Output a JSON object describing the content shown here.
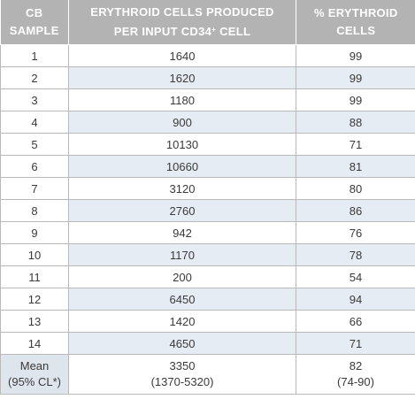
{
  "headers": {
    "col1_line1": "CB",
    "col1_line2": "SAMPLE",
    "col2_line1": "ERYTHROID CELLS PRODUCED",
    "col2_line2_pre": "PER INPUT CD34",
    "col2_sup": "+",
    "col2_line2_post": " CELL",
    "col3_line1": "% ERYTHROID",
    "col3_line2": "CELLS"
  },
  "rows": [
    {
      "sample": "1",
      "produced": "1640",
      "percent": "99"
    },
    {
      "sample": "2",
      "produced": "1620",
      "percent": "99"
    },
    {
      "sample": "3",
      "produced": "1180",
      "percent": "99"
    },
    {
      "sample": "4",
      "produced": "900",
      "percent": "88"
    },
    {
      "sample": "5",
      "produced": "10130",
      "percent": "71"
    },
    {
      "sample": "6",
      "produced": "10660",
      "percent": "81"
    },
    {
      "sample": "7",
      "produced": "3120",
      "percent": "80"
    },
    {
      "sample": "8",
      "produced": "2760",
      "percent": "86"
    },
    {
      "sample": "9",
      "produced": "942",
      "percent": "76"
    },
    {
      "sample": "10",
      "produced": "1170",
      "percent": "78"
    },
    {
      "sample": "11",
      "produced": "200",
      "percent": "54"
    },
    {
      "sample": "12",
      "produced": "6450",
      "percent": "94"
    },
    {
      "sample": "13",
      "produced": "1420",
      "percent": "66"
    },
    {
      "sample": "14",
      "produced": "4650",
      "percent": "71"
    }
  ],
  "mean": {
    "label_line1": "Mean",
    "label_line2": "(95% CL*)",
    "produced_line1": "3350",
    "produced_line2": "(1370-5320)",
    "percent_line1": "82",
    "percent_line2": "(74-90)"
  },
  "colors": {
    "header_bg": "#b3b3b3",
    "stripe_bg": "#e6ecf3",
    "border": "#b9b9b9"
  }
}
